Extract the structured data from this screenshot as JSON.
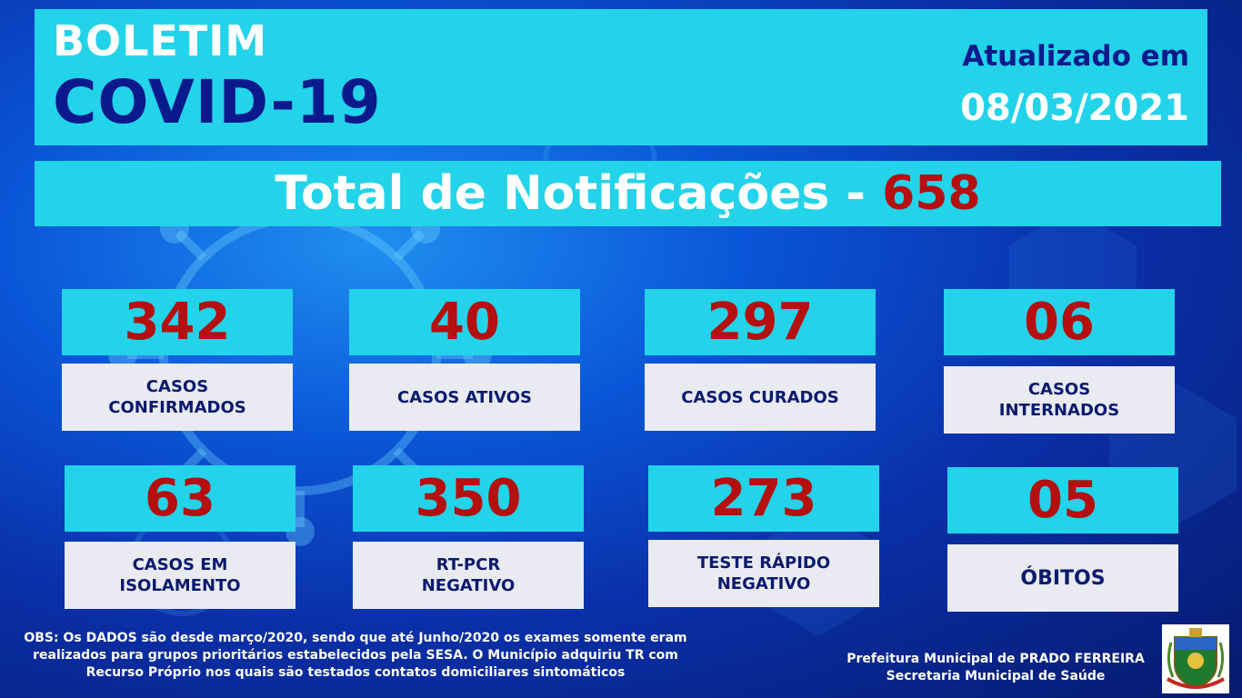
{
  "header": {
    "title_line1": "BOLETIM",
    "title_line2": "COVID-19",
    "updated_label": "Atualizado em",
    "updated_date": "08/03/2021"
  },
  "total": {
    "label": "Total de Notificações - ",
    "value": "658"
  },
  "stats": [
    {
      "value": "342",
      "label": "CASOS\nCONFIRMADOS"
    },
    {
      "value": "40",
      "label": "CASOS ATIVOS"
    },
    {
      "value": "297",
      "label": "CASOS CURADOS"
    },
    {
      "value": "06",
      "label": "CASOS\nINTERNADOS"
    },
    {
      "value": "63",
      "label": "CASOS EM\nISOLAMENTO"
    },
    {
      "value": "350",
      "label": "RT-PCR\nNEGATIVO"
    },
    {
      "value": "273",
      "label": "TESTE RÁPIDO\nNEGATIVO"
    },
    {
      "value": "05",
      "label": "ÓBITOS"
    }
  ],
  "footer": {
    "obs_line1": "OBS: Os DADOS são desde março/2020, sendo que até Junho/2020 os exames somente eram",
    "obs_line2": "realizados para grupos prioritários estabelecidos pela SESA. O Município adquiriu TR com",
    "obs_line3": "Recurso Próprio nos quais são testados contatos domiciliares sintomáticos",
    "gov_line1": "Prefeitura Municipal de PRADO FERREIRA",
    "gov_line2": "Secretaria Municipal de Saúde"
  },
  "colors": {
    "cyan_panel": "#22d3ea",
    "value_red": "#b50f0f",
    "title_navy": "#0a1a8c",
    "label_bg": "#e9eaf2"
  },
  "icons": [
    "virus-illustration",
    "municipal-crest-icon"
  ]
}
